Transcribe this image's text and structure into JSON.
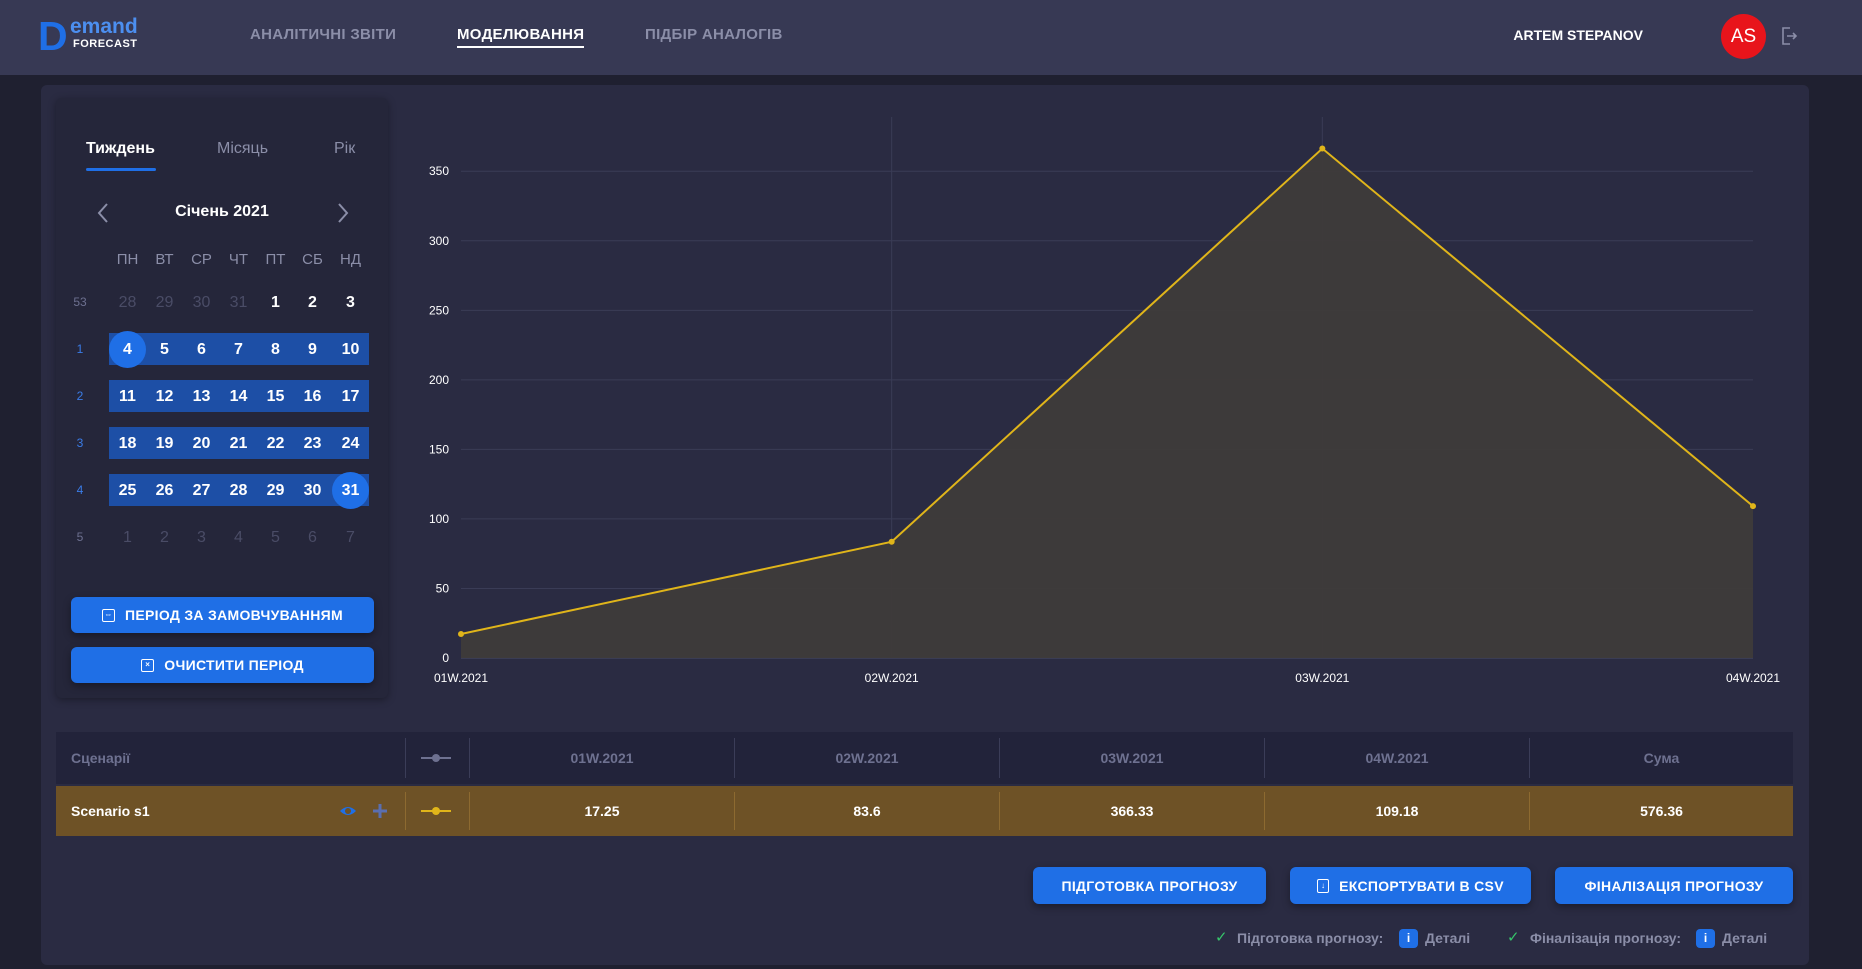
{
  "header": {
    "logo_d": "D",
    "logo_emand": "emand",
    "logo_forecast": "FORECAST",
    "nav": [
      "АНАЛІТИЧНІ ЗВІТИ",
      "МОДЕЛЮВАННЯ",
      "ПІДБІР АНАЛОГІВ"
    ],
    "active_nav": "МОДЕЛЮВАННЯ",
    "user_name": "ARTEM STEPANOV",
    "avatar_initials": "AS",
    "avatar_color": "#e8141b",
    "logout_icon": "logout-icon"
  },
  "calendar": {
    "tabs": [
      "Тиждень",
      "Місяць",
      "Рік"
    ],
    "active_tab": "Тиждень",
    "month_label": "Січень 2021",
    "weekdays": [
      "ПН",
      "ВТ",
      "СР",
      "ЧТ",
      "ПТ",
      "СБ",
      "НД"
    ],
    "weeks": [
      {
        "num": "53",
        "days": [
          "28",
          "29",
          "30",
          "31",
          "1",
          "2",
          "3"
        ]
      },
      {
        "num": "1",
        "days": [
          "4",
          "5",
          "6",
          "7",
          "8",
          "9",
          "10"
        ]
      },
      {
        "num": "2",
        "days": [
          "11",
          "12",
          "13",
          "14",
          "15",
          "16",
          "17"
        ]
      },
      {
        "num": "3",
        "days": [
          "18",
          "19",
          "20",
          "21",
          "22",
          "23",
          "24"
        ]
      },
      {
        "num": "4",
        "days": [
          "25",
          "26",
          "27",
          "28",
          "29",
          "30",
          "31"
        ]
      },
      {
        "num": "5",
        "days": [
          "1",
          "2",
          "3",
          "4",
          "5",
          "6",
          "7"
        ]
      }
    ],
    "selected_range_start": "4",
    "selected_range_end": "31",
    "custom_period_button": "ПЕРІОД ЗА ЗАМОВЧУВАННЯМ",
    "clear_period_button": "ОЧИСТИТИ ПЕРІОД"
  },
  "chart_data": {
    "type": "area",
    "x": [
      "01W.2021",
      "02W.2021",
      "03W.2021",
      "04W.2021"
    ],
    "series": [
      {
        "name": "Scenario s1",
        "values": [
          17.25,
          83.6,
          366.33,
          109.18
        ],
        "color": "#e0b51a"
      }
    ],
    "ylim": [
      0,
      389
    ],
    "yticks": [
      0,
      50,
      100,
      150,
      200,
      250,
      300,
      350
    ],
    "grid": true
  },
  "table": {
    "headers": [
      "Сценарії",
      "01W.2021",
      "02W.2021",
      "03W.2021",
      "04W.2021",
      "Сума"
    ],
    "rows": [
      {
        "scenario": "Scenario s1",
        "values": [
          "17.25",
          "83.6",
          "366.33",
          "109.18"
        ],
        "sum": "576.36",
        "color": "#e0b51a"
      }
    ]
  },
  "actions": {
    "prepare": "ПІДГОТОВКА ПРОГНОЗУ",
    "export": "ЕКСПОРТУВАТИ В CSV",
    "finalize": "ФІНАЛІЗАЦІЯ ПРОГНОЗУ"
  },
  "status": {
    "prepare_label": "Підготовка прогнозу:",
    "finalize_label": "Фіналізація прогнозу:",
    "details": "Деталі",
    "ok_color": "#36c46a"
  }
}
